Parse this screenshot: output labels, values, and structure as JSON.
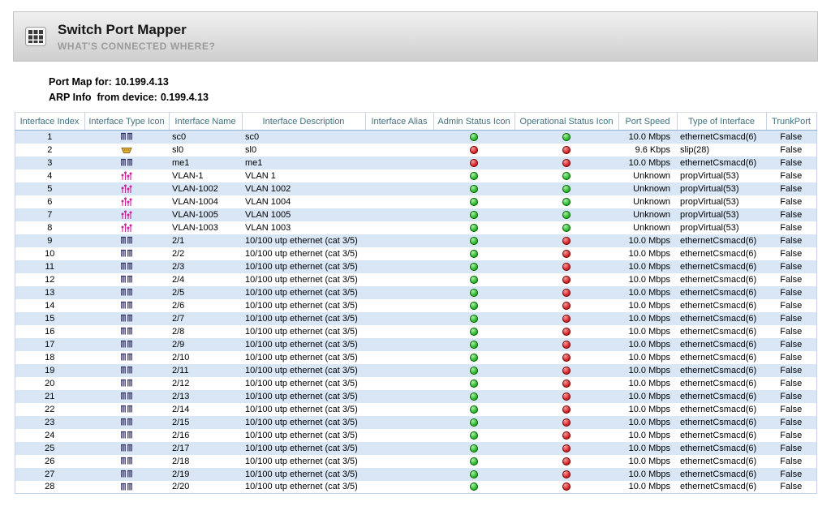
{
  "header": {
    "title": "Switch Port Mapper",
    "subtitle": "WHAT'S CONNECTED WHERE?",
    "app_icon": "port-mapper-grid-icon"
  },
  "info": {
    "port_map_label": "Port Map for:",
    "port_map_value": "10.199.4.13",
    "arp_label": "ARP Info  from device:",
    "arp_value": "0.199.4.13"
  },
  "colors": {
    "status_up": "#2db82d",
    "status_down": "#d42424",
    "row_stripe": "#d9e6f6",
    "header_text": "#41707f",
    "vlan_icon": "#cc2299",
    "serial_icon": "#e8b23a",
    "ethernet_icon": "#3a3464"
  },
  "table": {
    "columns": [
      "Interface Index",
      "Interface Type Icon",
      "Interface Name",
      "Interface Description",
      "Interface Alias",
      "Admin Status Icon",
      "Operational Status Icon",
      "Port Speed",
      "Type of Interface",
      "TrunkPort"
    ],
    "rows": [
      {
        "index": "1",
        "type_icon": "ethernet-port-icon",
        "name": "sc0",
        "description": "sc0",
        "alias": "",
        "admin": "up",
        "oper": "up",
        "speed": "10.0 Mbps",
        "type": "ethernetCsmacd(6)",
        "trunk": "False"
      },
      {
        "index": "2",
        "type_icon": "serial-port-icon",
        "name": "sl0",
        "description": "sl0",
        "alias": "",
        "admin": "down",
        "oper": "down",
        "speed": "9.6 Kbps",
        "type": "slip(28)",
        "trunk": "False"
      },
      {
        "index": "3",
        "type_icon": "ethernet-port-icon",
        "name": "me1",
        "description": "me1",
        "alias": "",
        "admin": "down",
        "oper": "down",
        "speed": "10.0 Mbps",
        "type": "ethernetCsmacd(6)",
        "trunk": "False"
      },
      {
        "index": "4",
        "type_icon": "vlan-icon",
        "name": "VLAN-1",
        "description": "VLAN 1",
        "alias": "",
        "admin": "up",
        "oper": "up",
        "speed": "Unknown",
        "type": "propVirtual(53)",
        "trunk": "False"
      },
      {
        "index": "5",
        "type_icon": "vlan-icon",
        "name": "VLAN-1002",
        "description": "VLAN 1002",
        "alias": "",
        "admin": "up",
        "oper": "up",
        "speed": "Unknown",
        "type": "propVirtual(53)",
        "trunk": "False"
      },
      {
        "index": "6",
        "type_icon": "vlan-icon",
        "name": "VLAN-1004",
        "description": "VLAN 1004",
        "alias": "",
        "admin": "up",
        "oper": "up",
        "speed": "Unknown",
        "type": "propVirtual(53)",
        "trunk": "False"
      },
      {
        "index": "7",
        "type_icon": "vlan-icon",
        "name": "VLAN-1005",
        "description": "VLAN 1005",
        "alias": "",
        "admin": "up",
        "oper": "up",
        "speed": "Unknown",
        "type": "propVirtual(53)",
        "trunk": "False"
      },
      {
        "index": "8",
        "type_icon": "vlan-icon",
        "name": "VLAN-1003",
        "description": "VLAN 1003",
        "alias": "",
        "admin": "up",
        "oper": "up",
        "speed": "Unknown",
        "type": "propVirtual(53)",
        "trunk": "False"
      },
      {
        "index": "9",
        "type_icon": "ethernet-port-icon",
        "name": "2/1",
        "description": "10/100 utp ethernet (cat 3/5)",
        "alias": "",
        "admin": "up",
        "oper": "down",
        "speed": "10.0 Mbps",
        "type": "ethernetCsmacd(6)",
        "trunk": "False"
      },
      {
        "index": "10",
        "type_icon": "ethernet-port-icon",
        "name": "2/2",
        "description": "10/100 utp ethernet (cat 3/5)",
        "alias": "",
        "admin": "up",
        "oper": "down",
        "speed": "10.0 Mbps",
        "type": "ethernetCsmacd(6)",
        "trunk": "False"
      },
      {
        "index": "11",
        "type_icon": "ethernet-port-icon",
        "name": "2/3",
        "description": "10/100 utp ethernet (cat 3/5)",
        "alias": "",
        "admin": "up",
        "oper": "down",
        "speed": "10.0 Mbps",
        "type": "ethernetCsmacd(6)",
        "trunk": "False"
      },
      {
        "index": "12",
        "type_icon": "ethernet-port-icon",
        "name": "2/4",
        "description": "10/100 utp ethernet (cat 3/5)",
        "alias": "",
        "admin": "up",
        "oper": "down",
        "speed": "10.0 Mbps",
        "type": "ethernetCsmacd(6)",
        "trunk": "False"
      },
      {
        "index": "13",
        "type_icon": "ethernet-port-icon",
        "name": "2/5",
        "description": "10/100 utp ethernet (cat 3/5)",
        "alias": "",
        "admin": "up",
        "oper": "down",
        "speed": "10.0 Mbps",
        "type": "ethernetCsmacd(6)",
        "trunk": "False"
      },
      {
        "index": "14",
        "type_icon": "ethernet-port-icon",
        "name": "2/6",
        "description": "10/100 utp ethernet (cat 3/5)",
        "alias": "",
        "admin": "up",
        "oper": "down",
        "speed": "10.0 Mbps",
        "type": "ethernetCsmacd(6)",
        "trunk": "False"
      },
      {
        "index": "15",
        "type_icon": "ethernet-port-icon",
        "name": "2/7",
        "description": "10/100 utp ethernet (cat 3/5)",
        "alias": "",
        "admin": "up",
        "oper": "down",
        "speed": "10.0 Mbps",
        "type": "ethernetCsmacd(6)",
        "trunk": "False"
      },
      {
        "index": "16",
        "type_icon": "ethernet-port-icon",
        "name": "2/8",
        "description": "10/100 utp ethernet (cat 3/5)",
        "alias": "",
        "admin": "up",
        "oper": "down",
        "speed": "10.0 Mbps",
        "type": "ethernetCsmacd(6)",
        "trunk": "False"
      },
      {
        "index": "17",
        "type_icon": "ethernet-port-icon",
        "name": "2/9",
        "description": "10/100 utp ethernet (cat 3/5)",
        "alias": "",
        "admin": "up",
        "oper": "down",
        "speed": "10.0 Mbps",
        "type": "ethernetCsmacd(6)",
        "trunk": "False"
      },
      {
        "index": "18",
        "type_icon": "ethernet-port-icon",
        "name": "2/10",
        "description": "10/100 utp ethernet (cat 3/5)",
        "alias": "",
        "admin": "up",
        "oper": "down",
        "speed": "10.0 Mbps",
        "type": "ethernetCsmacd(6)",
        "trunk": "False"
      },
      {
        "index": "19",
        "type_icon": "ethernet-port-icon",
        "name": "2/11",
        "description": "10/100 utp ethernet (cat 3/5)",
        "alias": "",
        "admin": "up",
        "oper": "down",
        "speed": "10.0 Mbps",
        "type": "ethernetCsmacd(6)",
        "trunk": "False"
      },
      {
        "index": "20",
        "type_icon": "ethernet-port-icon",
        "name": "2/12",
        "description": "10/100 utp ethernet (cat 3/5)",
        "alias": "",
        "admin": "up",
        "oper": "down",
        "speed": "10.0 Mbps",
        "type": "ethernetCsmacd(6)",
        "trunk": "False"
      },
      {
        "index": "21",
        "type_icon": "ethernet-port-icon",
        "name": "2/13",
        "description": "10/100 utp ethernet (cat 3/5)",
        "alias": "",
        "admin": "up",
        "oper": "down",
        "speed": "10.0 Mbps",
        "type": "ethernetCsmacd(6)",
        "trunk": "False"
      },
      {
        "index": "22",
        "type_icon": "ethernet-port-icon",
        "name": "2/14",
        "description": "10/100 utp ethernet (cat 3/5)",
        "alias": "",
        "admin": "up",
        "oper": "down",
        "speed": "10.0 Mbps",
        "type": "ethernetCsmacd(6)",
        "trunk": "False"
      },
      {
        "index": "23",
        "type_icon": "ethernet-port-icon",
        "name": "2/15",
        "description": "10/100 utp ethernet (cat 3/5)",
        "alias": "",
        "admin": "up",
        "oper": "down",
        "speed": "10.0 Mbps",
        "type": "ethernetCsmacd(6)",
        "trunk": "False"
      },
      {
        "index": "24",
        "type_icon": "ethernet-port-icon",
        "name": "2/16",
        "description": "10/100 utp ethernet (cat 3/5)",
        "alias": "",
        "admin": "up",
        "oper": "down",
        "speed": "10.0 Mbps",
        "type": "ethernetCsmacd(6)",
        "trunk": "False"
      },
      {
        "index": "25",
        "type_icon": "ethernet-port-icon",
        "name": "2/17",
        "description": "10/100 utp ethernet (cat 3/5)",
        "alias": "",
        "admin": "up",
        "oper": "down",
        "speed": "10.0 Mbps",
        "type": "ethernetCsmacd(6)",
        "trunk": "False"
      },
      {
        "index": "26",
        "type_icon": "ethernet-port-icon",
        "name": "2/18",
        "description": "10/100 utp ethernet (cat 3/5)",
        "alias": "",
        "admin": "up",
        "oper": "down",
        "speed": "10.0 Mbps",
        "type": "ethernetCsmacd(6)",
        "trunk": "False"
      },
      {
        "index": "27",
        "type_icon": "ethernet-port-icon",
        "name": "2/19",
        "description": "10/100 utp ethernet (cat 3/5)",
        "alias": "",
        "admin": "up",
        "oper": "down",
        "speed": "10.0 Mbps",
        "type": "ethernetCsmacd(6)",
        "trunk": "False"
      },
      {
        "index": "28",
        "type_icon": "ethernet-port-icon",
        "name": "2/20",
        "description": "10/100 utp ethernet (cat 3/5)",
        "alias": "",
        "admin": "up",
        "oper": "down",
        "speed": "10.0 Mbps",
        "type": "ethernetCsmacd(6)",
        "trunk": "False"
      }
    ]
  }
}
